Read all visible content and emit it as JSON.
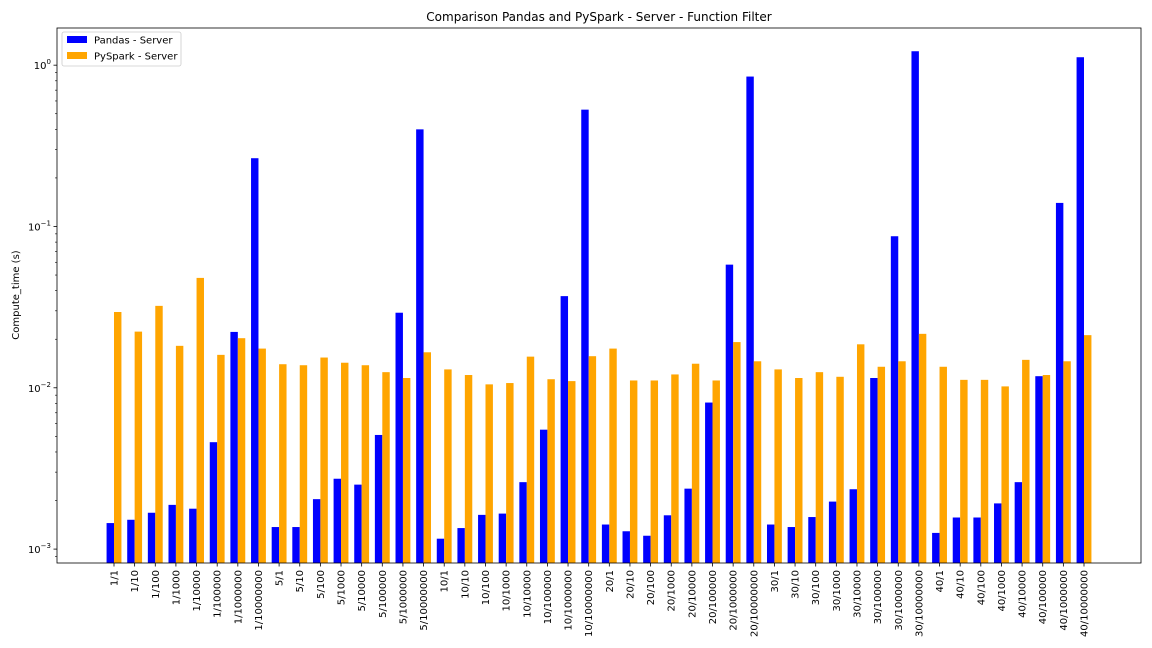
{
  "chart_data": {
    "type": "bar",
    "title": "Comparison Pandas and PySpark - Server - Function Filter",
    "xlabel": "",
    "ylabel": "Compute_time (s)",
    "yscale": "log",
    "ylim": [
      0.00082,
      1.7
    ],
    "yticks": [
      0.001,
      0.01,
      0.1,
      1
    ],
    "yticks_base": "10",
    "yticks_exp": [
      "−3",
      "−2",
      "−1",
      "0"
    ],
    "legend_position": "top-left",
    "categories": [
      "1/1",
      "1/10",
      "1/100",
      "1/1000",
      "1/10000",
      "1/100000",
      "1/1000000",
      "1/10000000",
      "5/1",
      "5/10",
      "5/100",
      "5/1000",
      "5/10000",
      "5/100000",
      "5/1000000",
      "5/10000000",
      "10/1",
      "10/10",
      "10/100",
      "10/1000",
      "10/10000",
      "10/100000",
      "10/1000000",
      "10/10000000",
      "20/1",
      "20/10",
      "20/100",
      "20/1000",
      "20/10000",
      "20/100000",
      "20/1000000",
      "20/10000000",
      "30/1",
      "30/10",
      "30/100",
      "30/1000",
      "30/10000",
      "30/100000",
      "30/1000000",
      "30/10000000",
      "40/1",
      "40/10",
      "40/100",
      "40/1000",
      "40/10000",
      "40/100000",
      "40/1000000",
      "40/10000000"
    ],
    "series": [
      {
        "name": "Pandas - Server",
        "color": "#0000ff",
        "values": [
          0.00145,
          0.00152,
          0.00168,
          0.00188,
          0.00178,
          0.0046,
          0.0222,
          0.265,
          0.00137,
          0.00137,
          0.00204,
          0.00273,
          0.00251,
          0.0051,
          0.0292,
          0.4,
          0.00116,
          0.00135,
          0.00163,
          0.00166,
          0.0026,
          0.0055,
          0.037,
          0.53,
          0.00142,
          0.00129,
          0.00121,
          0.00162,
          0.00237,
          0.0081,
          0.058,
          0.85,
          0.00142,
          0.00137,
          0.00158,
          0.00197,
          0.00235,
          0.0115,
          0.087,
          1.22,
          0.00126,
          0.00157,
          0.00157,
          0.00192,
          0.0026,
          0.0118,
          0.14,
          1.12
        ]
      },
      {
        "name": "PySpark - Server",
        "color": "#ffa500",
        "values": [
          0.0295,
          0.0223,
          0.0322,
          0.0182,
          0.048,
          0.016,
          0.0203,
          0.0175,
          0.014,
          0.0138,
          0.0154,
          0.0143,
          0.0138,
          0.0125,
          0.0115,
          0.0166,
          0.013,
          0.012,
          0.0105,
          0.0107,
          0.0156,
          0.0113,
          0.011,
          0.0157,
          0.0175,
          0.0111,
          0.0111,
          0.0121,
          0.0141,
          0.0111,
          0.0192,
          0.0146,
          0.013,
          0.0115,
          0.0125,
          0.0117,
          0.0186,
          0.0135,
          0.0146,
          0.0216,
          0.0135,
          0.0112,
          0.0112,
          0.0102,
          0.0149,
          0.012,
          0.0146,
          0.0212
        ]
      }
    ]
  }
}
